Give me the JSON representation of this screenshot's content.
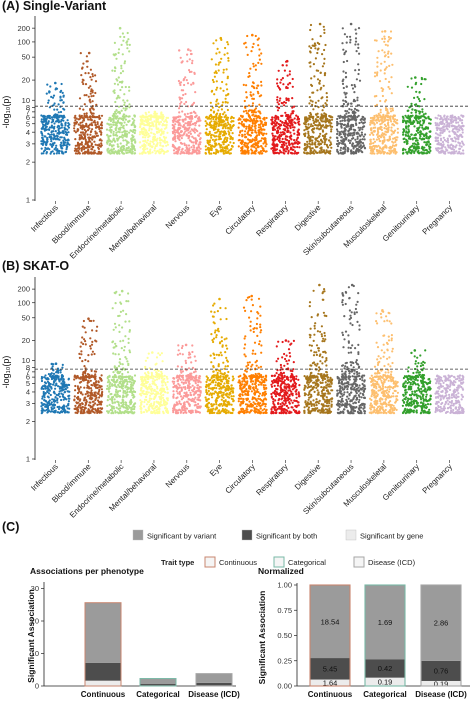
{
  "panels": {
    "a_label": "(A) Single-Variant",
    "b_label": "(B) SKAT-O",
    "c_label": "(C)"
  },
  "manhattan": {
    "ylabel": "-log₁₀(p)",
    "yticks": [
      1,
      2,
      3,
      4,
      5,
      6,
      7,
      8,
      10,
      20,
      50,
      100,
      200
    ],
    "categories": [
      "Infectious",
      "Blood/immune",
      "Endocrine/metabolic",
      "Mental/behavioral",
      "Nervous",
      "Eye",
      "Circulatory",
      "Respiratory",
      "Digestive",
      "Skin/subcutaneous",
      "Musculoskeletal",
      "Genitourinary",
      "Pregnancy"
    ],
    "colors": [
      "#1f78b4",
      "#b15928",
      "#b2df8a",
      "#ffff99",
      "#fb9a99",
      "#e6ab02",
      "#ff7f00",
      "#e31a1c",
      "#a6761d",
      "#666666",
      "#fdbf6f",
      "#33a02c",
      "#cab2d6"
    ]
  },
  "chart_data": [
    {
      "type": "scatter",
      "title": "(A) Single-Variant",
      "ylabel": "-log10(p)",
      "x": [
        "Infectious",
        "Blood/immune",
        "Endocrine/metabolic",
        "Mental/behavioral",
        "Nervous",
        "Eye",
        "Circulatory",
        "Respiratory",
        "Digestive",
        "Skin/subcutaneous",
        "Musculoskeletal",
        "Genitourinary",
        "Pregnancy"
      ],
      "significance_threshold": 8.3,
      "series": [
        {
          "values": [
            18,
            60,
            200,
            7,
            70,
            120,
            140,
            42,
            250,
            250,
            170,
            22,
            6
          ]
        }
      ]
    },
    {
      "type": "scatter",
      "title": "(B) SKAT-O",
      "ylabel": "-log10(p)",
      "x": [
        "Infectious",
        "Blood/immune",
        "Endocrine/metabolic",
        "Mental/behavioral",
        "Nervous",
        "Eye",
        "Circulatory",
        "Respiratory",
        "Digestive",
        "Skin/subcutaneous",
        "Musculoskeletal",
        "Genitourinary",
        "Pregnancy"
      ],
      "significance_threshold": 7.6,
      "series": [
        {
          "values": [
            9,
            48,
            180,
            13,
            17,
            120,
            140,
            20,
            250,
            250,
            70,
            14,
            6
          ]
        }
      ]
    },
    {
      "type": "bar",
      "title": "Associations per phenotype",
      "ylabel": "Significant Association",
      "categories": [
        "Continuous",
        "Categorical",
        "Disease (ICD)"
      ],
      "series": [
        {
          "name": "Significant by variant",
          "values": [
            18.54,
            1.69,
            2.86
          ]
        },
        {
          "name": "Significant by both",
          "values": [
            5.45,
            0.42,
            0.76
          ]
        },
        {
          "name": "Significant by gene",
          "values": [
            1.64,
            0.19,
            0.19
          ]
        }
      ]
    },
    {
      "type": "bar",
      "title": "Normalized",
      "ylabel": "Significant Association",
      "categories": [
        "Continuous",
        "Categorical",
        "Disease (ICD)"
      ],
      "ylim": [
        0,
        1
      ],
      "series": [
        {
          "name": "Significant by variant",
          "labels": [
            "18.54",
            "1.69",
            "2.86"
          ]
        },
        {
          "name": "Significant by both",
          "labels": [
            "5.45",
            "0.42",
            "0.76"
          ]
        },
        {
          "name": "Significant by gene",
          "labels": [
            "1.64",
            "0.19",
            "0.19"
          ]
        }
      ]
    }
  ],
  "legend": {
    "fill": [
      {
        "label": "Significant by variant",
        "color": "#9b9b9b"
      },
      {
        "label": "Significant by both",
        "color": "#4d4d4d"
      },
      {
        "label": "Significant by gene",
        "color": "#ececec"
      }
    ],
    "trait_title": "Trait type",
    "trait": [
      {
        "label": "Continuous",
        "color": "#c8866f"
      },
      {
        "label": "Categorical",
        "color": "#79b9a7"
      },
      {
        "label": "Disease (ICD)",
        "color": "#a6a6a6"
      }
    ]
  },
  "bars": {
    "left_title": "Associations per phenotype",
    "right_title": "Normalized",
    "ylabel": "Significant Association",
    "left_yticks": [
      "0",
      "10",
      "20",
      "30"
    ],
    "right_yticks": [
      "0.00",
      "0.25",
      "0.50",
      "0.75",
      "1.00"
    ],
    "categories": [
      "Continuous",
      "Categorical",
      "Disease (ICD)"
    ]
  }
}
